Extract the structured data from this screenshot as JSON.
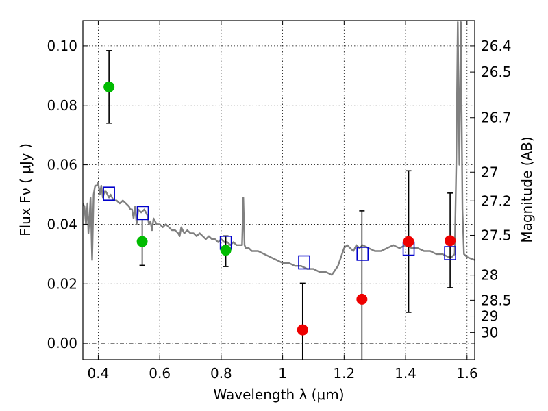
{
  "chart_data": {
    "type": "scatter",
    "xlabel": "Wavelength  λ (μm)",
    "ylabel": "Flux  Fν  ( μJy )",
    "ylabel_right": "Magnitude (AB)",
    "xlim": [
      0.35,
      1.625
    ],
    "ylim": [
      -0.0055,
      0.1085
    ],
    "grid": true,
    "x_ticks": [
      0.4,
      0.6,
      0.8,
      1.0,
      1.2,
      1.4,
      1.6
    ],
    "x_tick_labels": [
      "0.4",
      "0.6",
      "0.8",
      "1",
      "1.2",
      "1.4",
      "1.6"
    ],
    "y_ticks": [
      0.0,
      0.02,
      0.04,
      0.06,
      0.08,
      0.1
    ],
    "y_tick_labels": [
      "0.00",
      "0.02",
      "0.04",
      "0.06",
      "0.08",
      "0.10"
    ],
    "mag_ticks": [
      26.4,
      26.5,
      26.7,
      27,
      27.2,
      27.5,
      28,
      28.5,
      29,
      30
    ],
    "mag_tick_labels": [
      "26.4",
      "26.5",
      "26.7",
      "27",
      "27.2",
      "27.5",
      "28",
      "28.5",
      "29",
      "30"
    ],
    "zero_line": 0.0,
    "series": [
      {
        "kind": "model_spectrum",
        "color": "#808080",
        "x": [
          0.35,
          0.355,
          0.36,
          0.365,
          0.368,
          0.372,
          0.375,
          0.38,
          0.385,
          0.39,
          0.395,
          0.4,
          0.405,
          0.41,
          0.415,
          0.42,
          0.425,
          0.43,
          0.435,
          0.44,
          0.45,
          0.46,
          0.47,
          0.48,
          0.49,
          0.5,
          0.505,
          0.51,
          0.515,
          0.52,
          0.525,
          0.53,
          0.54,
          0.55,
          0.56,
          0.565,
          0.57,
          0.575,
          0.58,
          0.59,
          0.6,
          0.61,
          0.62,
          0.63,
          0.64,
          0.65,
          0.66,
          0.665,
          0.67,
          0.68,
          0.69,
          0.7,
          0.71,
          0.72,
          0.73,
          0.74,
          0.75,
          0.76,
          0.77,
          0.78,
          0.79,
          0.8,
          0.81,
          0.82,
          0.83,
          0.84,
          0.85,
          0.86,
          0.868,
          0.872,
          0.876,
          0.88,
          0.89,
          0.9,
          0.92,
          0.94,
          0.96,
          0.98,
          1.0,
          1.02,
          1.04,
          1.06,
          1.08,
          1.1,
          1.12,
          1.14,
          1.16,
          1.18,
          1.2,
          1.21,
          1.22,
          1.23,
          1.24,
          1.25,
          1.26,
          1.28,
          1.3,
          1.32,
          1.34,
          1.36,
          1.38,
          1.4,
          1.42,
          1.44,
          1.46,
          1.48,
          1.5,
          1.52,
          1.54,
          1.55,
          1.56,
          1.565,
          1.57,
          1.575,
          1.58,
          1.585,
          1.59,
          1.6,
          1.625
        ],
        "y": [
          0.047,
          0.046,
          0.04,
          0.047,
          0.037,
          0.043,
          0.049,
          0.028,
          0.05,
          0.053,
          0.053,
          0.054,
          0.05,
          0.053,
          0.049,
          0.051,
          0.051,
          0.05,
          0.049,
          0.05,
          0.048,
          0.048,
          0.047,
          0.048,
          0.047,
          0.046,
          0.045,
          0.045,
          0.042,
          0.046,
          0.04,
          0.045,
          0.044,
          0.045,
          0.043,
          0.04,
          0.041,
          0.038,
          0.042,
          0.04,
          0.04,
          0.039,
          0.04,
          0.039,
          0.038,
          0.038,
          0.037,
          0.036,
          0.039,
          0.037,
          0.038,
          0.037,
          0.037,
          0.036,
          0.037,
          0.036,
          0.035,
          0.036,
          0.035,
          0.035,
          0.034,
          0.035,
          0.034,
          0.034,
          0.033,
          0.034,
          0.033,
          0.033,
          0.033,
          0.049,
          0.033,
          0.032,
          0.032,
          0.031,
          0.031,
          0.03,
          0.029,
          0.028,
          0.027,
          0.027,
          0.026,
          0.026,
          0.025,
          0.025,
          0.024,
          0.024,
          0.023,
          0.026,
          0.032,
          0.033,
          0.032,
          0.031,
          0.033,
          0.032,
          0.033,
          0.032,
          0.031,
          0.031,
          0.032,
          0.033,
          0.032,
          0.033,
          0.032,
          0.032,
          0.031,
          0.031,
          0.03,
          0.03,
          0.029,
          0.029,
          0.03,
          0.06,
          0.108,
          0.06,
          0.108,
          0.045,
          0.03,
          0.029,
          0.028
        ]
      },
      {
        "kind": "model_photometry",
        "marker": "square",
        "color": "#0000cc",
        "x": [
          0.435,
          0.545,
          0.815,
          1.07,
          1.26,
          1.41,
          1.545
        ],
        "y": [
          0.0503,
          0.0438,
          0.0338,
          0.0272,
          0.0301,
          0.0318,
          0.0303
        ]
      },
      {
        "kind": "detections",
        "marker": "circle",
        "color": "#00bb00",
        "x": [
          0.435,
          0.543,
          0.815
        ],
        "y": [
          0.0862,
          0.0342,
          0.0313
        ],
        "yerr_low": [
          0.0122,
          0.008,
          0.0055
        ],
        "yerr_high": [
          0.0122,
          0.0075,
          0.0048
        ]
      },
      {
        "kind": "non_detections",
        "marker": "circle",
        "color": "#ee0000",
        "x": [
          1.065,
          1.258,
          1.41,
          1.545
        ],
        "y": [
          0.0045,
          0.0148,
          0.0342,
          0.0345
        ],
        "yerr_low": [
          0.015,
          0.03,
          0.0238,
          0.0158
        ],
        "yerr_high": [
          0.0157,
          0.0297,
          0.0238,
          0.016
        ]
      }
    ]
  }
}
